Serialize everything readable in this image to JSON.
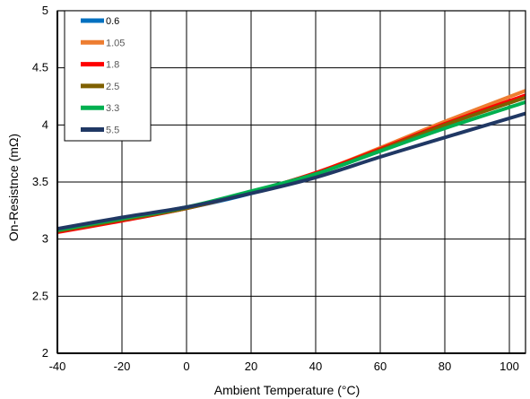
{
  "chart_data": {
    "type": "line",
    "title": "",
    "xlabel": "Ambient Temperature (°C)",
    "ylabel": "On-Resistnce (mΩ)",
    "xlim": [
      -40,
      105
    ],
    "ylim": [
      2,
      5
    ],
    "xticks": [
      -40,
      -20,
      0,
      20,
      40,
      60,
      80,
      100
    ],
    "yticks": [
      2,
      2.5,
      3,
      3.5,
      4,
      4.5,
      5
    ],
    "xtick_labels": [
      "-40",
      "-20",
      "0",
      "20",
      "40",
      "60",
      "80",
      "100"
    ],
    "ytick_labels": [
      "2",
      "2.5",
      "3",
      "3.5",
      "4",
      "4.5",
      "5"
    ],
    "grid": true,
    "legend_position": "top-left",
    "series": [
      {
        "name": "0.6",
        "color": "#0070C0",
        "x": [
          -40,
          -20,
          0,
          20,
          40,
          60,
          80,
          105
        ],
        "y": [
          3.08,
          3.17,
          3.27,
          3.4,
          3.57,
          3.78,
          4.0,
          4.25
        ]
      },
      {
        "name": "1.05",
        "color": "#ED7D31",
        "x": [
          -40,
          -20,
          0,
          20,
          40,
          60,
          80,
          105
        ],
        "y": [
          3.07,
          3.17,
          3.27,
          3.41,
          3.58,
          3.8,
          4.03,
          4.3
        ]
      },
      {
        "name": "1.8",
        "color": "#FF0000",
        "x": [
          -40,
          -20,
          0,
          20,
          40,
          60,
          80,
          105
        ],
        "y": [
          3.06,
          3.16,
          3.27,
          3.41,
          3.58,
          3.79,
          4.01,
          4.26
        ]
      },
      {
        "name": "2.5",
        "color": "#7F6000",
        "x": [
          -40,
          -20,
          0,
          20,
          40,
          60,
          80,
          105
        ],
        "y": [
          3.07,
          3.17,
          3.27,
          3.41,
          3.57,
          3.78,
          4.0,
          4.24
        ]
      },
      {
        "name": "3.3",
        "color": "#00B050",
        "x": [
          -40,
          -20,
          0,
          20,
          40,
          60,
          80,
          105
        ],
        "y": [
          3.08,
          3.18,
          3.28,
          3.42,
          3.57,
          3.77,
          3.97,
          4.2
        ]
      },
      {
        "name": "5.5",
        "color": "#203864",
        "x": [
          -40,
          -20,
          0,
          20,
          40,
          60,
          80,
          105
        ],
        "y": [
          3.09,
          3.19,
          3.28,
          3.4,
          3.54,
          3.72,
          3.89,
          4.1
        ]
      }
    ]
  }
}
